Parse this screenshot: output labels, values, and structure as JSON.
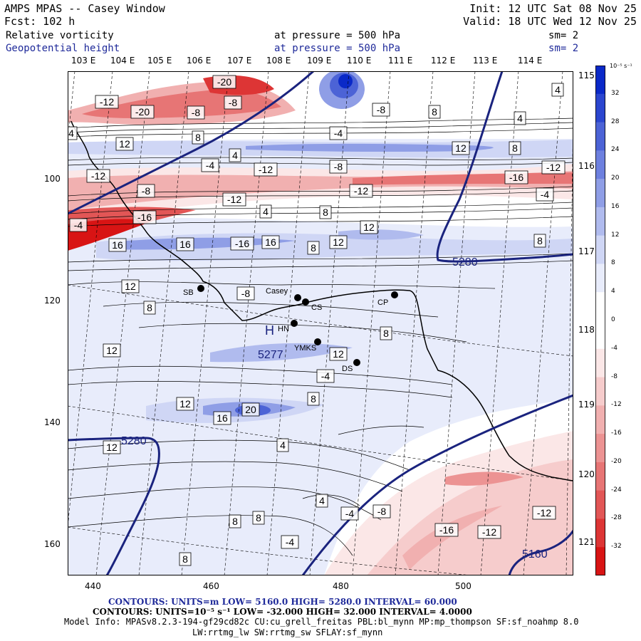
{
  "header": {
    "title": "AMPS MPAS -- Casey Window",
    "fcst": "Fcst:  102 h",
    "init": "Init: 12 UTC Sat 08 Nov 25",
    "valid": "Valid: 18 UTC Wed 12 Nov 25",
    "field1_name": "Relative vorticity",
    "field1_level": "at pressure =  500 hPa",
    "field1_sm": "sm= 2",
    "field2_name": "Geopotential height",
    "field2_level": "at pressure =  500 hPa",
    "field2_sm": "sm= 2"
  },
  "top_lon_labels": [
    "103 E",
    "104 E",
    "105 E",
    "106 E",
    "107 E",
    "108 E",
    "109 E",
    "110 E",
    "111 E",
    "112 E",
    "113 E",
    "114 E"
  ],
  "right_lon_labels": [
    "115 E",
    "116 E",
    "117 E",
    "118 E",
    "119 E",
    "120 E",
    "121 E"
  ],
  "y_axis": [
    "100",
    "120",
    "140",
    "160"
  ],
  "x_axis": [
    "440",
    "460",
    "480",
    "500"
  ],
  "colorbar": {
    "units": "10⁻⁵ s⁻¹",
    "labels": [
      "32",
      "28",
      "24",
      "20",
      "16",
      "12",
      "8",
      "4",
      "0",
      "-4",
      "-8",
      "-12",
      "-16",
      "-20",
      "-24",
      "-28",
      "-32"
    ]
  },
  "stations": [
    {
      "name": "Casey"
    },
    {
      "name": "CS"
    },
    {
      "name": "CP"
    },
    {
      "name": "HN"
    },
    {
      "name": "YMKS"
    },
    {
      "name": "DS"
    },
    {
      "name": "SB"
    }
  ],
  "highs": [
    {
      "text": "H"
    },
    {
      "text": "5277"
    }
  ],
  "height_labels": [
    "5280",
    "5280",
    "5160"
  ],
  "footer": {
    "contours_height": "CONTOURS:  UNITS=m  LOW=   5160.0        HIGH=  5280.0        INTERVAL=   60.000",
    "contours_vort": "CONTOURS:  UNITS=10⁻⁵ s⁻¹  LOW= -32.000        HIGH= 32.000        INTERVAL=   4.0000",
    "model_info": "Model Info: MPASv8.2.3-194-gf29cd82c CU:cu_grell_freitas PBL:bl_mynn MP:mp_thompson SF:sf_noahmp 8.0",
    "model_info2": "LW:rrtmg_lw SW:rrtmg_sw SFLAY:sf_mynn"
  },
  "colors": {
    "blue_scale": [
      "#e8ecfb",
      "#cfd6f5",
      "#b0bbee",
      "#8f9ee6",
      "#6d80df",
      "#4c63d6",
      "#2b46cf",
      "#0a29c8"
    ],
    "red_scale": [
      "#fbe7e7",
      "#f6cccc",
      "#f1b0b0",
      "#ec9393",
      "#e77575",
      "#e25656",
      "#dd3535",
      "#d81414"
    ],
    "height_line": "#1a237e"
  }
}
